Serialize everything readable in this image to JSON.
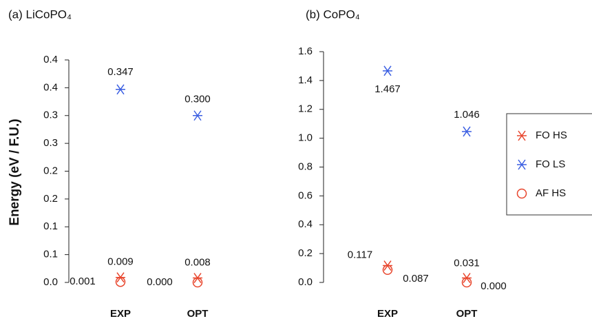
{
  "chart_data": [
    {
      "type": "scatter",
      "title": "(a) LiCoPO₄",
      "y_label": "Energy (eV / F.U.)",
      "categories": [
        "EXP",
        "OPT"
      ],
      "ylim": [
        0,
        0.4
      ],
      "yticks": [
        {
          "value": 0,
          "label": "0.0"
        },
        {
          "value": 0.05,
          "label": "0.1"
        },
        {
          "value": 0.1,
          "label": "0.1"
        },
        {
          "value": 0.15,
          "label": "0.2"
        },
        {
          "value": 0.2,
          "label": "0.2"
        },
        {
          "value": 0.25,
          "label": "0.3"
        },
        {
          "value": 0.3,
          "label": "0.3"
        },
        {
          "value": 0.35,
          "label": "0.4"
        },
        {
          "value": 0.4,
          "label": "0.4"
        }
      ],
      "series": [
        {
          "name": "FO HS",
          "color": "#e8452c",
          "marker": "asterisk",
          "values": [
            0.009,
            0.008
          ],
          "value_labels": [
            "0.009",
            "0.008"
          ]
        },
        {
          "name": "FO LS",
          "color": "#3b5fe2",
          "marker": "asterisk",
          "values": [
            0.347,
            0.3
          ],
          "value_labels": [
            "0.347",
            "0.300"
          ]
        },
        {
          "name": "AF HS",
          "color": "#e8452c",
          "marker": "circle",
          "values": [
            0.001,
            0
          ],
          "value_labels": [
            "0.001",
            "0.000"
          ]
        }
      ]
    },
    {
      "type": "scatter",
      "title": "(b) CoPO₄",
      "categories": [
        "EXP",
        "OPT"
      ],
      "ylim": [
        0,
        1.6
      ],
      "yticks": [
        {
          "value": 0,
          "label": "0.0"
        },
        {
          "value": 0.2,
          "label": "0.2"
        },
        {
          "value": 0.4,
          "label": "0.4"
        },
        {
          "value": 0.6,
          "label": "0.6"
        },
        {
          "value": 0.8,
          "label": "0.8"
        },
        {
          "value": 1,
          "label": "1.0"
        },
        {
          "value": 1.2,
          "label": "1.2"
        },
        {
          "value": 1.4,
          "label": "1.4"
        },
        {
          "value": 1.6,
          "label": "1.6"
        }
      ],
      "legend": "right",
      "series": [
        {
          "name": "FO HS",
          "color": "#e8452c",
          "marker": "asterisk",
          "values": [
            0.117,
            0.031
          ],
          "value_labels": [
            "0.117",
            "0.031"
          ]
        },
        {
          "name": "FO LS",
          "color": "#3b5fe2",
          "marker": "asterisk",
          "values": [
            1.467,
            1.046
          ],
          "value_labels": [
            "1.467",
            "1.046"
          ]
        },
        {
          "name": "AF HS",
          "color": "#e8452c",
          "marker": "circle",
          "values": [
            0.087,
            0
          ],
          "value_labels": [
            "0.087",
            "0.000"
          ]
        }
      ]
    }
  ]
}
